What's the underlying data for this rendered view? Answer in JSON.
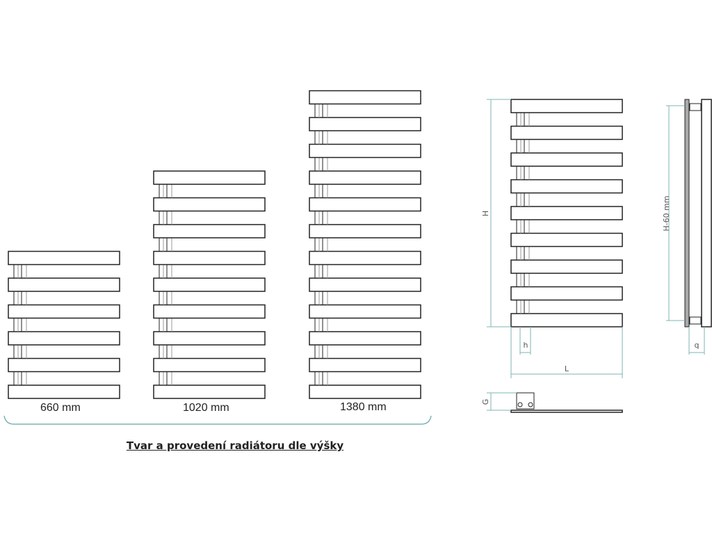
{
  "variants": [
    {
      "label": "660 mm",
      "bars": 6
    },
    {
      "label": "1020 mm",
      "bars": 9
    },
    {
      "label": "1380 mm",
      "bars": 12
    }
  ],
  "caption": "Tvar a provedení radiátoru dle výšky",
  "dimensions": {
    "H": "H",
    "h": "h",
    "L": "L",
    "G": "G",
    "H60": "H-60 mm",
    "q": "q"
  },
  "colors": {
    "line": "#222222",
    "dimension": "#7fb3b3",
    "support": "#999999"
  }
}
